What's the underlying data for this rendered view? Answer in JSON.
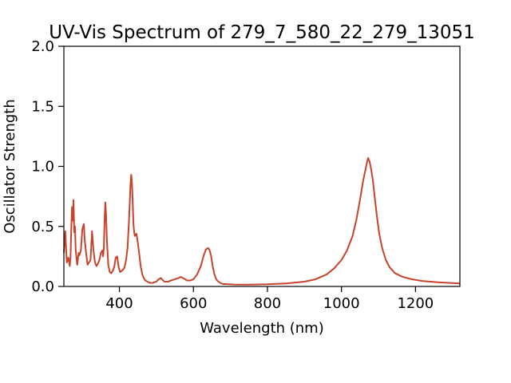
{
  "chart_data": {
    "type": "line",
    "title": "UV-Vis Spectrum of 279_7_580_22_279_13051",
    "xlabel": "Wavelength (nm)",
    "ylabel": "Oscillator Strength",
    "xlim": [
      250,
      1320
    ],
    "ylim": [
      0,
      2.0
    ],
    "xticks": [
      400,
      600,
      800,
      1000,
      1200
    ],
    "xtick_labels": [
      "400",
      "600",
      "800",
      "1000",
      "1200"
    ],
    "yticks": [
      0,
      0.5,
      1.0,
      1.5,
      2.0
    ],
    "ytick_labels": [
      "0.0",
      "0.5",
      "1.0",
      "1.5",
      "2.0"
    ],
    "grid": false,
    "legend": "none",
    "line_color": "#c8432b",
    "series": [
      {
        "x": [
          250,
          254,
          256,
          258,
          262,
          266,
          268,
          270,
          272,
          274,
          276,
          278,
          280,
          282,
          286,
          290,
          292,
          296,
          300,
          304,
          306,
          310,
          314,
          318,
          322,
          326,
          330,
          334,
          338,
          342,
          346,
          350,
          354,
          356,
          358,
          360,
          362,
          364,
          366,
          370,
          374,
          378,
          382,
          386,
          390,
          394,
          398,
          402,
          406,
          410,
          414,
          418,
          422,
          426,
          430,
          432,
          434,
          436,
          438,
          440,
          442,
          444,
          446,
          450,
          454,
          458,
          462,
          466,
          470,
          476,
          482,
          490,
          500,
          506,
          512,
          518,
          522,
          526,
          532,
          540,
          550,
          560,
          566,
          572,
          578,
          582,
          586,
          592,
          600,
          610,
          620,
          628,
          634,
          640,
          644,
          648,
          652,
          656,
          660,
          664,
          668,
          672,
          676,
          680,
          688,
          696,
          710,
          730,
          760,
          800,
          850,
          900,
          930,
          960,
          980,
          1000,
          1015,
          1030,
          1040,
          1050,
          1058,
          1064,
          1068,
          1072,
          1076,
          1080,
          1085,
          1090,
          1096,
          1102,
          1110,
          1120,
          1130,
          1145,
          1165,
          1190,
          1220,
          1260,
          1300,
          1320
        ],
        "y": [
          0.28,
          0.46,
          0.32,
          0.2,
          0.24,
          0.17,
          0.25,
          0.48,
          0.66,
          0.55,
          0.72,
          0.45,
          0.5,
          0.3,
          0.18,
          0.28,
          0.26,
          0.3,
          0.48,
          0.52,
          0.4,
          0.28,
          0.18,
          0.2,
          0.22,
          0.46,
          0.3,
          0.2,
          0.17,
          0.19,
          0.22,
          0.28,
          0.3,
          0.25,
          0.32,
          0.55,
          0.7,
          0.6,
          0.4,
          0.18,
          0.12,
          0.11,
          0.13,
          0.16,
          0.24,
          0.25,
          0.16,
          0.12,
          0.13,
          0.14,
          0.16,
          0.22,
          0.32,
          0.55,
          0.85,
          0.93,
          0.86,
          0.7,
          0.52,
          0.45,
          0.42,
          0.43,
          0.44,
          0.36,
          0.26,
          0.16,
          0.1,
          0.07,
          0.05,
          0.04,
          0.03,
          0.03,
          0.04,
          0.06,
          0.07,
          0.05,
          0.04,
          0.04,
          0.04,
          0.05,
          0.06,
          0.07,
          0.08,
          0.07,
          0.06,
          0.05,
          0.05,
          0.05,
          0.06,
          0.1,
          0.17,
          0.26,
          0.31,
          0.32,
          0.3,
          0.25,
          0.17,
          0.11,
          0.07,
          0.05,
          0.04,
          0.03,
          0.025,
          0.02,
          0.02,
          0.018,
          0.016,
          0.015,
          0.016,
          0.018,
          0.025,
          0.04,
          0.06,
          0.1,
          0.15,
          0.22,
          0.3,
          0.42,
          0.55,
          0.72,
          0.87,
          0.96,
          1.02,
          1.07,
          1.04,
          0.98,
          0.88,
          0.74,
          0.58,
          0.44,
          0.32,
          0.22,
          0.16,
          0.11,
          0.08,
          0.06,
          0.045,
          0.035,
          0.028,
          0.025
        ]
      }
    ]
  }
}
